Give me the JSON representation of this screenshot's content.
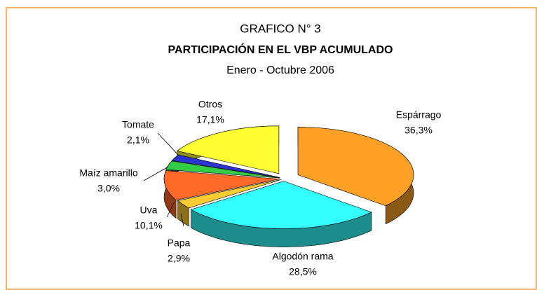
{
  "chart_data": {
    "type": "pie3d",
    "caption": "GRAFICO N° 3",
    "title": "PARTICIPACIÓN EN EL VBP ACUMULADO",
    "subtitle": "Enero - Octubre 2006",
    "categories": [
      "Espárrago",
      "Algodón rama",
      "Papa",
      "Uva",
      "Maíz amarillo",
      "Tomate",
      "Otros"
    ],
    "values": [
      36.3,
      28.5,
      2.9,
      10.1,
      3.0,
      2.1,
      17.1
    ],
    "value_labels": [
      "36,3%",
      "28,5%",
      "2,9%",
      "10,1%",
      "3,0%",
      "2,1%",
      "17,1%"
    ],
    "colors": [
      "#ffa126",
      "#33ffff",
      "#ffcc33",
      "#ff6a2a",
      "#33cc44",
      "#2a34d0",
      "#ffff33"
    ]
  }
}
